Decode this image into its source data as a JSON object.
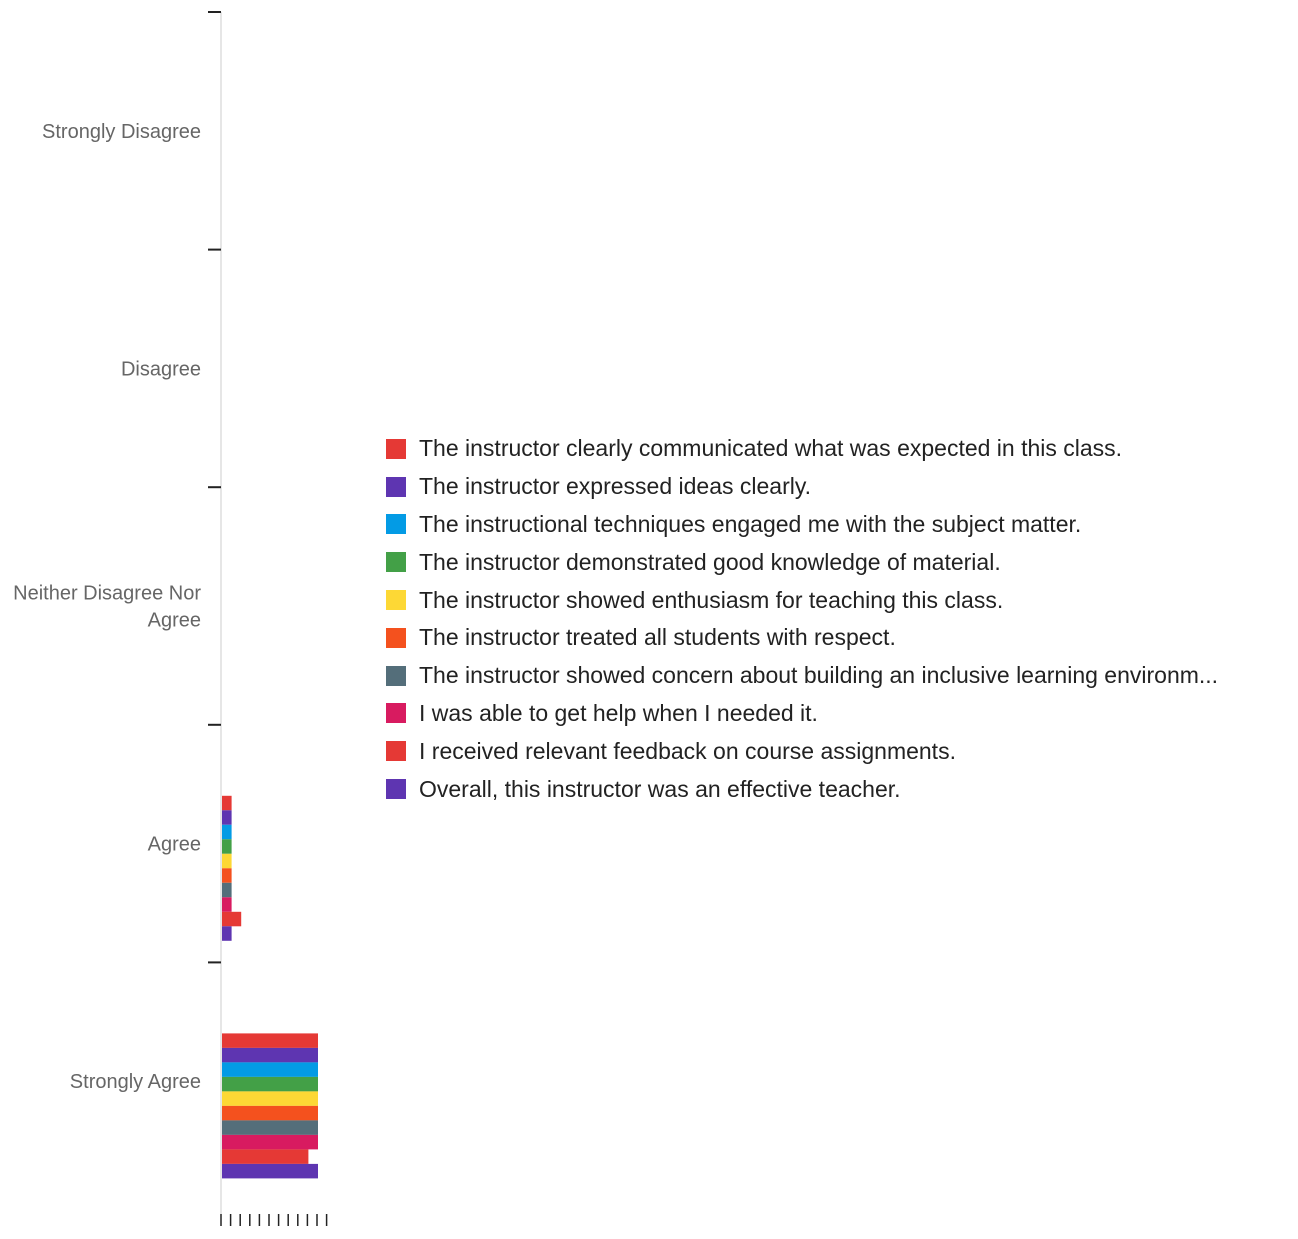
{
  "chart_data": {
    "type": "bar",
    "orientation": "horizontal",
    "categories": [
      "Strongly Disagree",
      "Disagree",
      "Neither Disagree Nor Agree",
      "Agree",
      "Strongly Agree"
    ],
    "category_lines": [
      [
        "Strongly Disagree"
      ],
      [
        "Disagree"
      ],
      [
        "Neither Disagree Nor",
        "Agree"
      ],
      [
        "Agree"
      ],
      [
        "Strongly Agree"
      ]
    ],
    "x_ticks": [
      "0",
      "1",
      "2",
      "3",
      "4",
      "5",
      "6",
      "7",
      "8",
      "9",
      "10",
      "11"
    ],
    "xlim": [
      0,
      11
    ],
    "legend_position": "right",
    "series": [
      {
        "name": "The instructor clearly communicated what was expected in this class.",
        "color": "#e53935",
        "values": [
          0,
          0,
          0,
          1,
          10
        ]
      },
      {
        "name": "The instructor expressed ideas clearly.",
        "color": "#5e35b1",
        "values": [
          0,
          0,
          0,
          1,
          10
        ]
      },
      {
        "name": "The instructional techniques engaged me with the subject matter.",
        "color": "#039be5",
        "values": [
          0,
          0,
          0,
          1,
          10
        ]
      },
      {
        "name": "The instructor demonstrated good knowledge of material.",
        "color": "#43a047",
        "values": [
          0,
          0,
          0,
          1,
          10
        ]
      },
      {
        "name": "The instructor showed enthusiasm for teaching this class.",
        "color": "#fdd835",
        "values": [
          0,
          0,
          0,
          1,
          10
        ]
      },
      {
        "name": "The instructor treated all students with respect.",
        "color": "#f4511e",
        "values": [
          0,
          0,
          0,
          1,
          10
        ]
      },
      {
        "name": "The instructor showed concern about building an inclusive learning environm...",
        "color": "#546e7a",
        "values": [
          0,
          0,
          0,
          1,
          10
        ]
      },
      {
        "name": "I was able to get help when I needed it.",
        "color": "#d81b60",
        "values": [
          0,
          0,
          0,
          1,
          10
        ]
      },
      {
        "name": "I received relevant feedback on course assignments.",
        "color": "#e53935",
        "values": [
          0,
          0,
          0,
          2,
          9
        ]
      },
      {
        "name": "Overall, this instructor was an effective teacher.",
        "color": "#5e35b1",
        "values": [
          0,
          0,
          0,
          1,
          10
        ]
      }
    ]
  }
}
